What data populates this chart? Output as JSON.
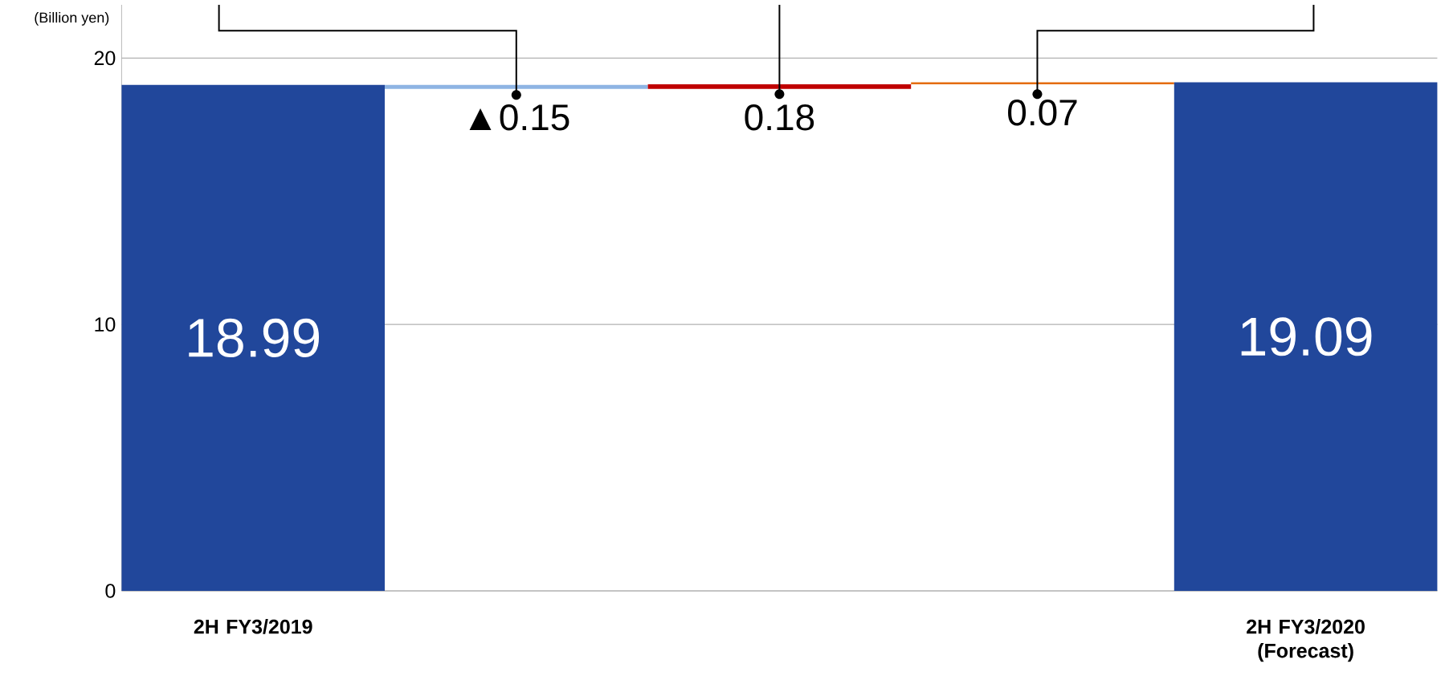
{
  "chart_data": {
    "type": "bar",
    "ylabel": "(Billion yen)",
    "categories": [
      "2H FY3/2019",
      null,
      null,
      null,
      "2H FY3/2020 (Forecast)"
    ],
    "values": [
      18.99,
      -0.15,
      0.18,
      0.07,
      19.09
    ],
    "base": [
      0,
      18.99,
      18.84,
      19.02,
      0
    ],
    "colors": [
      "#21479b",
      "#8eb4e3",
      "#c00000",
      "#e46c0a",
      "#21479b"
    ],
    "value_labels": [
      "18.99",
      "▲0.15",
      "0.18",
      "0.07",
      "19.09"
    ],
    "ylim": [
      0,
      22
    ],
    "yticks": [
      0,
      10,
      20
    ],
    "grid": "y"
  }
}
